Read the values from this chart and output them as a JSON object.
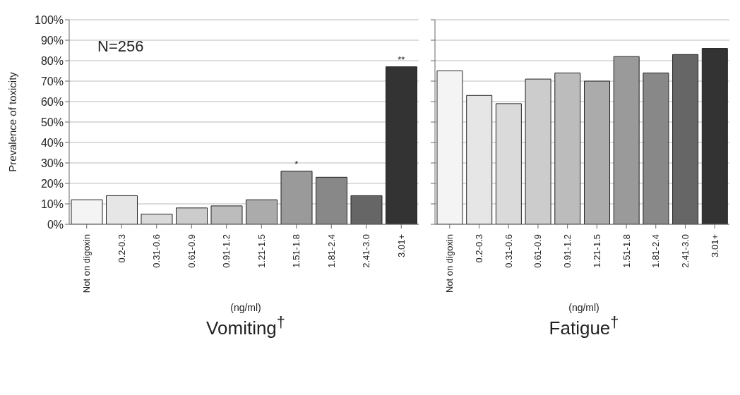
{
  "chart_data": [
    {
      "type": "bar",
      "title": "Vomiting$^{†}$",
      "xlabel": "(ng/ml)",
      "ylabel": "Prevalence of toxicity",
      "categories": [
        "Not on digoxin",
        "0.2-0.3",
        "0.31-0.6",
        "0.61-0.9",
        "0.91-1.2",
        "1.21-1.5",
        "1.51-1.8",
        "1.81-2.4",
        "2.41-3.0",
        "3.01+"
      ],
      "values": [
        12,
        14,
        5,
        8,
        9,
        12,
        26,
        23,
        14,
        77
      ],
      "colors": [
        "#f4f4f4",
        "#e6e6e6",
        "#dadada",
        "#cccccc",
        "#bcbcbc",
        "#ababab",
        "#9a9a9a",
        "#888888",
        "#666666",
        "#333333"
      ],
      "ylim": [
        0,
        100
      ],
      "yticks": [
        {
          "value": 0,
          "label": "0%"
        },
        {
          "value": 10,
          "label": "10%"
        },
        {
          "value": 20,
          "label": "20%"
        },
        {
          "value": 30,
          "label": "30%"
        },
        {
          "value": 40,
          "label": "40%"
        },
        {
          "value": 50,
          "label": "50%"
        },
        {
          "value": 60,
          "label": "60%"
        },
        {
          "value": 70,
          "label": "70%"
        },
        {
          "value": 80,
          "label": "80%"
        },
        {
          "value": 90,
          "label": "90%"
        },
        {
          "value": 100,
          "label": "100%"
        }
      ],
      "grid": "y",
      "annotations": [
        "N=256",
        {
          "text": "*",
          "x": "1.51-1.8",
          "y": 26
        },
        {
          "text": "**",
          "x": "3.01+",
          "y": 77
        }
      ]
    },
    {
      "type": "bar",
      "title": "Fatigue$^{†}$",
      "xlabel": "(ng/ml)",
      "categories": [
        "Not on digoxin",
        "0.2-0.3",
        "0.31-0.6",
        "0.61-0.9",
        "0.91-1.2",
        "1.21-1.5",
        "1.51-1.8",
        "1.81-2.4",
        "2.41-3.0",
        "3.01+"
      ],
      "values": [
        75,
        63,
        59,
        71,
        74,
        70,
        82,
        74,
        83,
        86
      ],
      "colors": [
        "#f4f4f4",
        "#e6e6e6",
        "#dadada",
        "#cccccc",
        "#bcbcbc",
        "#ababab",
        "#9a9a9a",
        "#888888",
        "#666666",
        "#333333"
      ],
      "ylim": [
        0,
        100
      ],
      "yticks": [
        {
          "value": 0,
          "label": null
        },
        {
          "value": 10,
          "label": null
        },
        {
          "value": 20,
          "label": null
        },
        {
          "value": 30,
          "label": null
        },
        {
          "value": 40,
          "label": null
        },
        {
          "value": 50,
          "label": null
        },
        {
          "value": 60,
          "label": null
        },
        {
          "value": 70,
          "label": null
        },
        {
          "value": 80,
          "label": null
        },
        {
          "value": 90,
          "label": null
        },
        {
          "value": 100,
          "label": null
        }
      ],
      "grid": "y",
      "tick_labels": "x"
    }
  ]
}
